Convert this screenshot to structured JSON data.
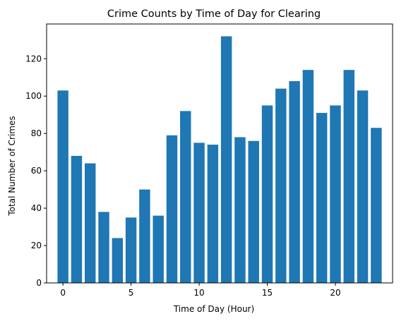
{
  "chart_data": {
    "type": "bar",
    "title": "Crime Counts by Time of Day for Clearing",
    "xlabel": "Time of Day (Hour)",
    "ylabel": "Total Number of Crimes",
    "x": [
      0,
      1,
      2,
      3,
      4,
      5,
      6,
      7,
      8,
      9,
      10,
      11,
      12,
      13,
      14,
      15,
      16,
      17,
      18,
      19,
      20,
      21,
      22,
      23
    ],
    "values": [
      103,
      68,
      64,
      38,
      24,
      35,
      50,
      36,
      79,
      92,
      75,
      74,
      132,
      78,
      76,
      95,
      104,
      108,
      114,
      91,
      95,
      114,
      103,
      83
    ],
    "xlim": [
      -1.2,
      24.2
    ],
    "ylim": [
      0,
      138.6
    ],
    "xticks": [
      0,
      5,
      10,
      15,
      20
    ],
    "yticks": [
      0,
      20,
      40,
      60,
      80,
      100,
      120
    ],
    "bar_color": "#1f77b4",
    "grid": false
  }
}
